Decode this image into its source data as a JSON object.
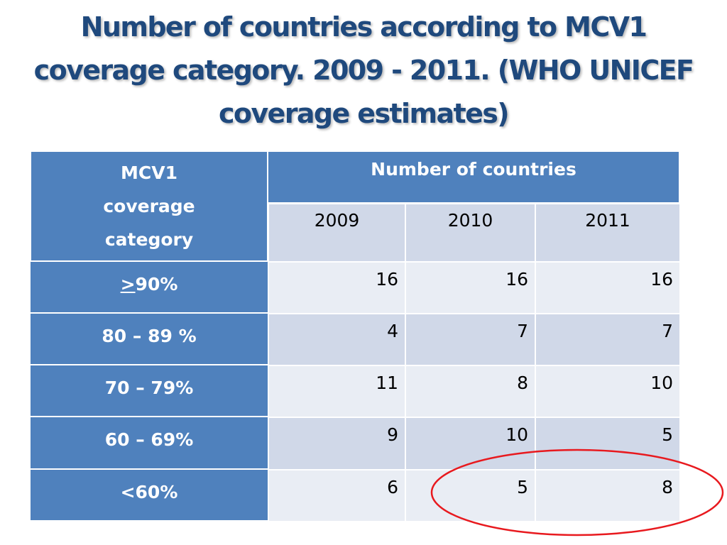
{
  "title": "Number of countries according to MCV1 coverage category. 2009 - 2011. (WHO UNICEF coverage estimates)",
  "table": {
    "category_header": "MCV1 coverage category",
    "count_header": "Number of countries",
    "years": [
      "2009",
      "2010",
      "2011"
    ],
    "rows": [
      {
        "prefix": ">",
        "category": "90%",
        "values": [
          "16",
          "16",
          "16"
        ]
      },
      {
        "prefix": "",
        "category": "80 – 89 %",
        "values": [
          "4",
          "7",
          "7"
        ]
      },
      {
        "prefix": "",
        "category": "70 – 79%",
        "values": [
          "11",
          "8",
          "10"
        ]
      },
      {
        "prefix": "",
        "category": "60 – 69%",
        "values": [
          "9",
          "10",
          "5"
        ]
      },
      {
        "prefix": "",
        "category": "<60%",
        "values": [
          "6",
          "5",
          "8"
        ]
      }
    ]
  },
  "colors": {
    "title": "#1f497d",
    "header_fill": "#4f81bd",
    "row_fill_dark": "#d0d8e8",
    "row_fill_light": "#e9edf4",
    "annotation_ellipse": "#e8191e"
  },
  "annotation": {
    "shape": "ellipse",
    "encloses": [
      "2010 <60% value",
      "2011 <60% value"
    ]
  }
}
